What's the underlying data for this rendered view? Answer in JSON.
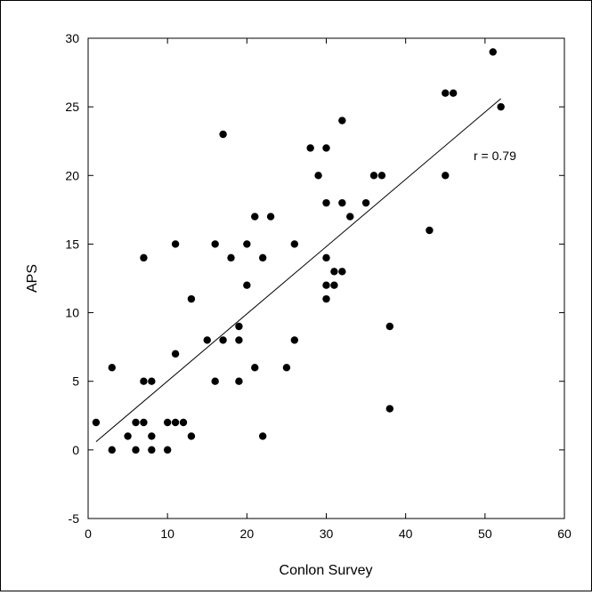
{
  "chart_data": {
    "type": "scatter",
    "title": "",
    "xlabel": "Conlon Survey",
    "ylabel": "APS",
    "xlim": [
      0,
      60
    ],
    "ylim": [
      -5,
      30
    ],
    "x_ticks": [
      0,
      10,
      20,
      30,
      40,
      50,
      60
    ],
    "y_ticks": [
      -5,
      0,
      5,
      10,
      15,
      20,
      25,
      30
    ],
    "grid": false,
    "annotation": "r = 0.79",
    "trendline": {
      "x": [
        1,
        52
      ],
      "y": [
        0.6,
        25.6
      ]
    },
    "points": [
      {
        "x": 1,
        "y": 2
      },
      {
        "x": 3,
        "y": 6
      },
      {
        "x": 3,
        "y": 0
      },
      {
        "x": 5,
        "y": 1
      },
      {
        "x": 6,
        "y": 2
      },
      {
        "x": 6,
        "y": 0
      },
      {
        "x": 7,
        "y": 2
      },
      {
        "x": 7,
        "y": 14
      },
      {
        "x": 7,
        "y": 5
      },
      {
        "x": 8,
        "y": 5
      },
      {
        "x": 8,
        "y": 1
      },
      {
        "x": 8,
        "y": 0
      },
      {
        "x": 10,
        "y": 2
      },
      {
        "x": 10,
        "y": 0
      },
      {
        "x": 11,
        "y": 15
      },
      {
        "x": 11,
        "y": 7
      },
      {
        "x": 11,
        "y": 2
      },
      {
        "x": 12,
        "y": 2
      },
      {
        "x": 13,
        "y": 1
      },
      {
        "x": 13,
        "y": 11
      },
      {
        "x": 15,
        "y": 8
      },
      {
        "x": 16,
        "y": 15
      },
      {
        "x": 16,
        "y": 5
      },
      {
        "x": 17,
        "y": 23
      },
      {
        "x": 17,
        "y": 8
      },
      {
        "x": 18,
        "y": 14
      },
      {
        "x": 19,
        "y": 9
      },
      {
        "x": 19,
        "y": 8
      },
      {
        "x": 19,
        "y": 5
      },
      {
        "x": 20,
        "y": 15
      },
      {
        "x": 20,
        "y": 12
      },
      {
        "x": 21,
        "y": 17
      },
      {
        "x": 21,
        "y": 6
      },
      {
        "x": 22,
        "y": 14
      },
      {
        "x": 22,
        "y": 1
      },
      {
        "x": 23,
        "y": 17
      },
      {
        "x": 25,
        "y": 6
      },
      {
        "x": 26,
        "y": 15
      },
      {
        "x": 26,
        "y": 8
      },
      {
        "x": 28,
        "y": 22
      },
      {
        "x": 29,
        "y": 20
      },
      {
        "x": 30,
        "y": 22
      },
      {
        "x": 30,
        "y": 18
      },
      {
        "x": 30,
        "y": 14
      },
      {
        "x": 30,
        "y": 12
      },
      {
        "x": 30,
        "y": 11
      },
      {
        "x": 31,
        "y": 13
      },
      {
        "x": 31,
        "y": 12
      },
      {
        "x": 32,
        "y": 24
      },
      {
        "x": 32,
        "y": 18
      },
      {
        "x": 32,
        "y": 13
      },
      {
        "x": 33,
        "y": 17
      },
      {
        "x": 35,
        "y": 18
      },
      {
        "x": 36,
        "y": 20
      },
      {
        "x": 37,
        "y": 20
      },
      {
        "x": 38,
        "y": 9
      },
      {
        "x": 38,
        "y": 3
      },
      {
        "x": 43,
        "y": 16
      },
      {
        "x": 45,
        "y": 26
      },
      {
        "x": 45,
        "y": 20
      },
      {
        "x": 46,
        "y": 26
      },
      {
        "x": 51,
        "y": 29
      },
      {
        "x": 52,
        "y": 25
      }
    ]
  }
}
